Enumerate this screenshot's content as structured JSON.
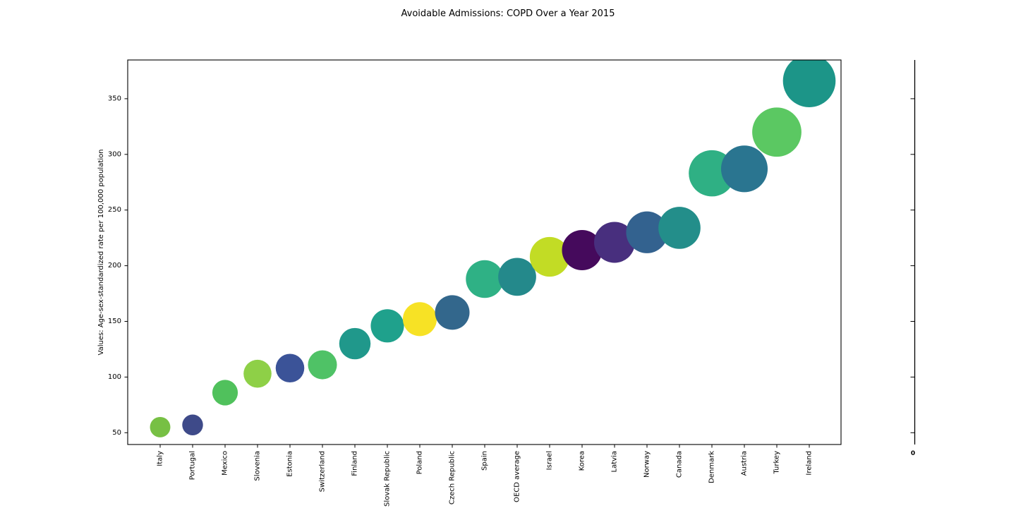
{
  "chart_data": {
    "type": "scatter",
    "title": "Avoidable Admissions: COPD Over a Year 2015",
    "ylabel": "Values: Age-sex-standardized rate per 100,000 population",
    "xlabel": "",
    "categories": [
      "Italy",
      "Portugal",
      "Mexico",
      "Slovenia",
      "Estonia",
      "Switzerland",
      "Finland",
      "Slovak Republic",
      "Poland",
      "Czech Republic",
      "Spain",
      "OECD average",
      "Israel",
      "Korea",
      "Latvia",
      "Norway",
      "Canada",
      "Denmark",
      "Austria",
      "Turkey",
      "Ireland"
    ],
    "values": [
      55,
      57,
      86,
      103,
      108,
      111,
      130,
      146,
      152,
      158,
      188,
      190,
      208,
      214,
      221,
      230,
      234,
      283,
      287,
      320,
      366
    ],
    "colors": [
      "#77C044",
      "#3E4A89",
      "#50C15C",
      "#8ED047",
      "#3B5398",
      "#4FC266",
      "#20988B",
      "#1FA18C",
      "#F7E225",
      "#33678C",
      "#2FB185",
      "#24898B",
      "#C2DC25",
      "#450A5C",
      "#482F7E",
      "#33628F",
      "#238E8A",
      "#2FB084",
      "#2A7590",
      "#5BC862",
      "#1C9588"
    ],
    "yticks": [
      50,
      100,
      150,
      200,
      250,
      300,
      350
    ],
    "ylim": [
      39,
      385
    ],
    "grid": false,
    "legend": "none",
    "marker_note": "bubble area grows with value",
    "right_axis": {
      "tick_count": 7,
      "bottom_label": "0"
    }
  }
}
